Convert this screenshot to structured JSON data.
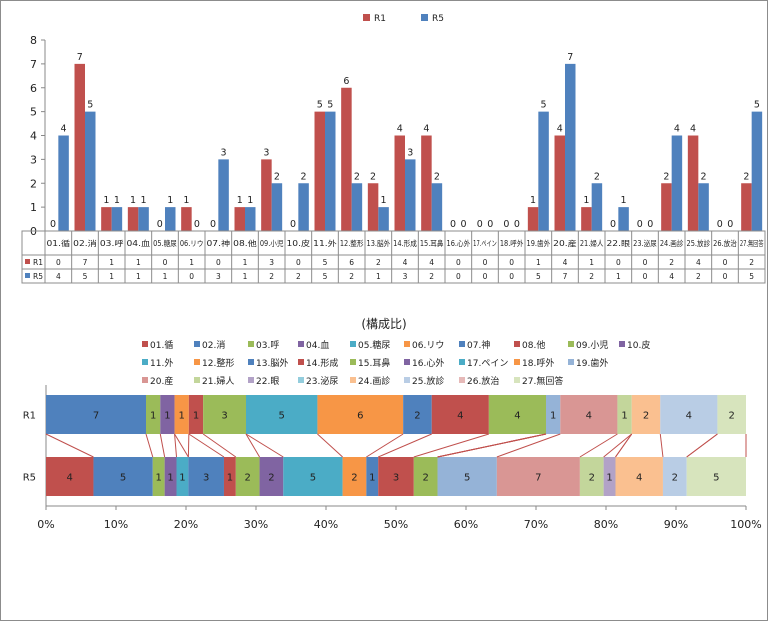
{
  "chart_data": [
    {
      "type": "bar",
      "ylim": [
        0,
        8
      ],
      "yticks": [
        0,
        1,
        2,
        3,
        4,
        5,
        6,
        7,
        8
      ],
      "grid": false,
      "legend_position": "top",
      "categories": [
        "01.循",
        "02.消",
        "03.呼",
        "04.血",
        "05.糖尿",
        "06.リウ",
        "07.神",
        "08.他",
        "09.小児",
        "10.皮",
        "11.外",
        "12.整形",
        "13.脳外",
        "14.形成",
        "15.耳鼻",
        "16.心外",
        "17.ペイン",
        "18.呼外",
        "19.歯外",
        "20.産",
        "21.婦人",
        "22.眼",
        "23.泌尿",
        "24.画診",
        "25.放診",
        "26.放治",
        "27.無回答"
      ],
      "series": [
        {
          "name": "R1",
          "color": "#c0504d",
          "values": [
            0,
            7,
            1,
            1,
            0,
            1,
            0,
            1,
            3,
            0,
            5,
            6,
            2,
            4,
            4,
            0,
            0,
            0,
            1,
            4,
            1,
            0,
            0,
            2,
            4,
            0,
            2
          ]
        },
        {
          "name": "R5",
          "color": "#4f81bd",
          "values": [
            4,
            5,
            1,
            1,
            1,
            0,
            3,
            1,
            2,
            2,
            5,
            2,
            1,
            3,
            2,
            0,
            0,
            0,
            5,
            7,
            2,
            1,
            0,
            4,
            2,
            0,
            5
          ]
        }
      ]
    },
    {
      "type": "bar",
      "stacked": "percent",
      "orientation": "horizontal",
      "title": "(構成比)",
      "rows": [
        "R1",
        "R5"
      ],
      "xticks": [
        "0%",
        "10%",
        "20%",
        "30%",
        "40%",
        "50%",
        "60%",
        "70%",
        "80%",
        "90%",
        "100%"
      ],
      "legend_position": "top",
      "categories": [
        "01.循",
        "02.消",
        "03.呼",
        "04.血",
        "05.糖尿",
        "06.リウ",
        "07.神",
        "08.他",
        "09.小児",
        "10.皮",
        "11.外",
        "12.整形",
        "13.脳外",
        "14.形成",
        "15.耳鼻",
        "16.心外",
        "17.ペイン",
        "18.呼外",
        "19.歯外",
        "20.産",
        "21.婦人",
        "22.眼",
        "23.泌尿",
        "24.画診",
        "25.放診",
        "26.放治",
        "27.無回答"
      ],
      "colors": [
        "#c0504d",
        "#4f81bd",
        "#9bbb59",
        "#8064a2",
        "#4bacc6",
        "#f79646",
        "#4f81bd",
        "#c0504d",
        "#9bbb59",
        "#8064a2",
        "#4bacc6",
        "#f79646",
        "#4f81bd",
        "#c0504d",
        "#9bbb59",
        "#8064a2",
        "#4bacc6",
        "#f79646",
        "#95b3d7",
        "#d99694",
        "#c3d69b",
        "#b2a2c7",
        "#93cddd",
        "#fac090",
        "#b9cde5",
        "#e6b9b8",
        "#d7e4bd"
      ],
      "series": [
        {
          "name": "R1",
          "values": [
            0,
            7,
            1,
            1,
            0,
            1,
            0,
            1,
            3,
            0,
            5,
            6,
            2,
            4,
            4,
            0,
            0,
            0,
            1,
            4,
            1,
            0,
            0,
            2,
            4,
            0,
            2
          ]
        },
        {
          "name": "R5",
          "values": [
            4,
            5,
            1,
            1,
            1,
            0,
            3,
            1,
            2,
            2,
            5,
            2,
            1,
            3,
            2,
            0,
            0,
            0,
            5,
            7,
            2,
            1,
            0,
            4,
            2,
            0,
            5
          ]
        }
      ]
    }
  ]
}
